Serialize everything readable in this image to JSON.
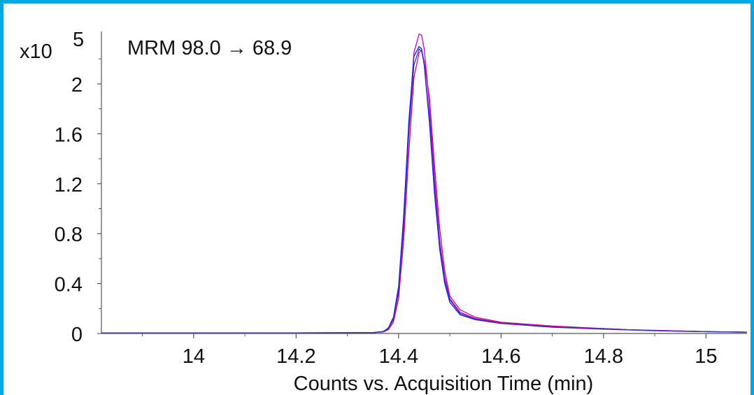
{
  "chart_data": {
    "type": "line",
    "title": "MRM 98.0 → 68.9",
    "xlabel": "Counts vs. Acquisition Time (min)",
    "ylabel": "",
    "y_multiplier_label": "x10",
    "y_multiplier_exponent": "5",
    "xlim": [
      13.82,
      15.08
    ],
    "ylim": [
      0,
      2.42
    ],
    "x_ticks": [
      14,
      14.2,
      14.4,
      14.6,
      14.8,
      15
    ],
    "x_tick_labels": [
      "14",
      "14.2",
      "14.4",
      "14.6",
      "14.8",
      "15"
    ],
    "y_ticks": [
      0,
      0.4,
      0.8,
      1.2,
      1.6,
      2
    ],
    "y_tick_labels": [
      "0",
      "0.4",
      "0.8",
      "1.2",
      "1.6",
      "2"
    ],
    "grid": false,
    "legend": "none",
    "series": [
      {
        "color": "#e0007a",
        "x": [
          13.82,
          14.0,
          14.2,
          14.35,
          14.37,
          14.38,
          14.39,
          14.4,
          14.41,
          14.42,
          14.43,
          14.44,
          14.445,
          14.45,
          14.46,
          14.47,
          14.48,
          14.49,
          14.5,
          14.52,
          14.55,
          14.6,
          14.65,
          14.7,
          14.75,
          14.8,
          14.85,
          14.9,
          14.95,
          15.0,
          15.08
        ],
        "y": [
          0.005,
          0.005,
          0.005,
          0.006,
          0.012,
          0.03,
          0.09,
          0.28,
          0.75,
          1.45,
          2.05,
          2.25,
          2.27,
          2.18,
          1.9,
          1.35,
          0.85,
          0.5,
          0.3,
          0.19,
          0.13,
          0.09,
          0.075,
          0.06,
          0.05,
          0.04,
          0.03,
          0.025,
          0.02,
          0.015,
          0.01
        ]
      },
      {
        "color": "#c000e0",
        "x": [
          13.82,
          14.0,
          14.2,
          14.35,
          14.37,
          14.38,
          14.39,
          14.4,
          14.41,
          14.42,
          14.43,
          14.44,
          14.445,
          14.45,
          14.46,
          14.47,
          14.48,
          14.49,
          14.5,
          14.52,
          14.55,
          14.6,
          14.65,
          14.7,
          14.75,
          14.8,
          14.85,
          14.9,
          14.95,
          15.0,
          15.08
        ],
        "y": [
          0.005,
          0.005,
          0.005,
          0.007,
          0.015,
          0.04,
          0.12,
          0.35,
          0.9,
          1.65,
          2.25,
          2.4,
          2.39,
          2.28,
          1.85,
          1.25,
          0.75,
          0.45,
          0.28,
          0.17,
          0.12,
          0.085,
          0.07,
          0.055,
          0.045,
          0.04,
          0.03,
          0.025,
          0.02,
          0.015,
          0.01
        ]
      },
      {
        "color": "#1a1aff",
        "x": [
          13.82,
          14.0,
          14.2,
          14.35,
          14.37,
          14.38,
          14.39,
          14.4,
          14.41,
          14.42,
          14.43,
          14.44,
          14.445,
          14.45,
          14.46,
          14.47,
          14.48,
          14.49,
          14.5,
          14.52,
          14.55,
          14.6,
          14.65,
          14.7,
          14.75,
          14.8,
          14.85,
          14.9,
          14.95,
          15.0,
          15.08
        ],
        "y": [
          0.005,
          0.005,
          0.005,
          0.007,
          0.016,
          0.045,
          0.13,
          0.38,
          0.95,
          1.7,
          2.22,
          2.3,
          2.28,
          2.15,
          1.7,
          1.12,
          0.68,
          0.4,
          0.25,
          0.15,
          0.11,
          0.08,
          0.065,
          0.05,
          0.042,
          0.035,
          0.028,
          0.022,
          0.018,
          0.014,
          0.01
        ]
      },
      {
        "color": "#3a3aa0",
        "x": [
          13.82,
          14.0,
          14.2,
          14.35,
          14.37,
          14.38,
          14.39,
          14.4,
          14.41,
          14.42,
          14.43,
          14.44,
          14.445,
          14.45,
          14.46,
          14.47,
          14.48,
          14.49,
          14.5,
          14.52,
          14.55,
          14.6,
          14.65,
          14.7,
          14.75,
          14.8,
          14.85,
          14.9,
          14.95,
          15.0,
          15.08
        ],
        "y": [
          0.005,
          0.005,
          0.005,
          0.006,
          0.014,
          0.04,
          0.11,
          0.33,
          0.85,
          1.6,
          2.15,
          2.28,
          2.26,
          2.16,
          1.75,
          1.18,
          0.72,
          0.43,
          0.27,
          0.16,
          0.115,
          0.082,
          0.067,
          0.052,
          0.044,
          0.036,
          0.029,
          0.023,
          0.019,
          0.015,
          0.01
        ]
      }
    ]
  }
}
